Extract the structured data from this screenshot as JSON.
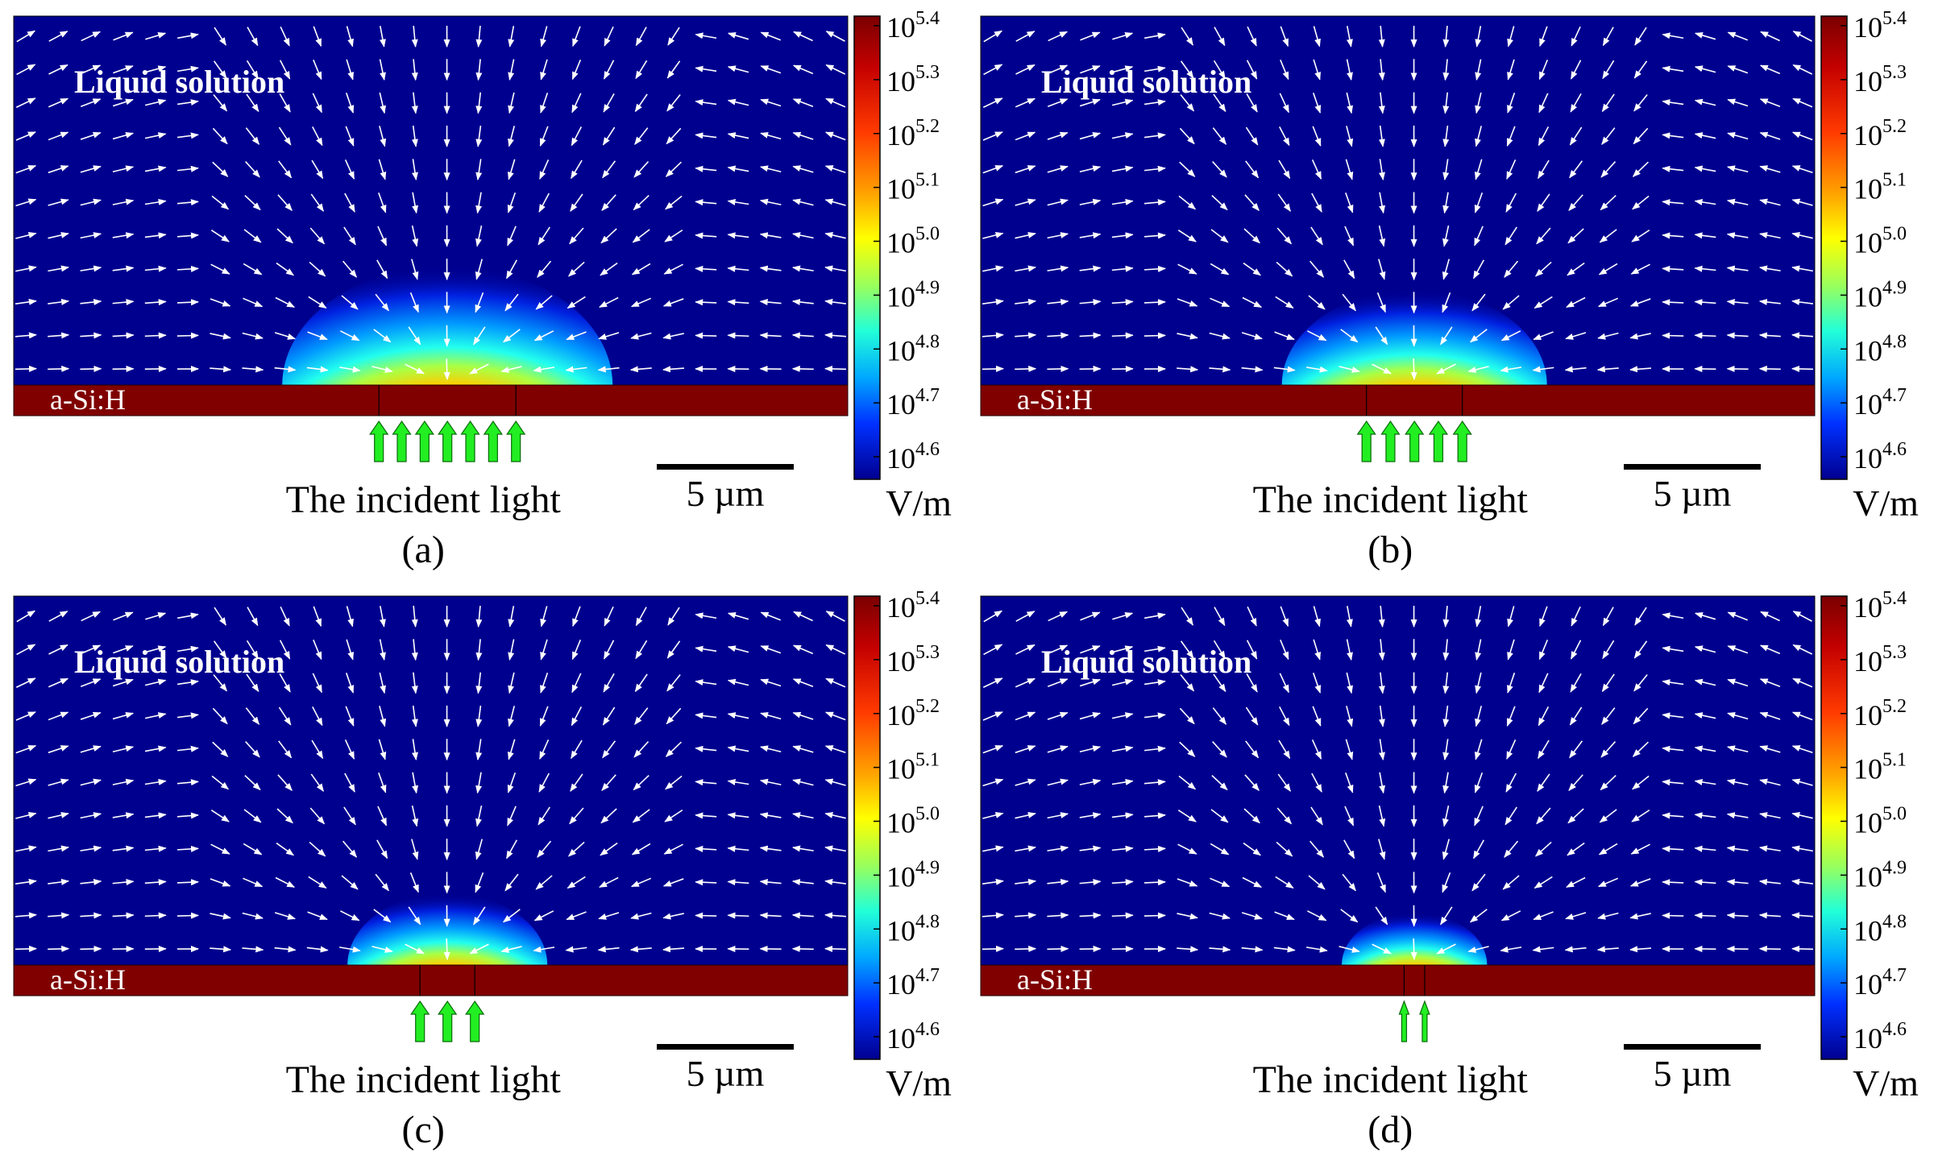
{
  "figure": {
    "panels": [
      {
        "id": "a",
        "caption": "(a)",
        "medium_label": "Liquid solution",
        "layer_label": "a-Si:H",
        "light_label": "The incident light",
        "scale_label": "5 µm",
        "unit_label": "V/m",
        "illuminated_width_um": 5.0,
        "arrow_count": 7
      },
      {
        "id": "b",
        "caption": "(b)",
        "medium_label": "Liquid solution",
        "layer_label": "a-Si:H",
        "light_label": "The incident light",
        "scale_label": "5 µm",
        "unit_label": "V/m",
        "illuminated_width_um": 3.5,
        "arrow_count": 5
      },
      {
        "id": "c",
        "caption": "(c)",
        "medium_label": "Liquid solution",
        "layer_label": "a-Si:H",
        "light_label": "The incident light",
        "scale_label": "5 µm",
        "unit_label": "V/m",
        "illuminated_width_um": 2.0,
        "arrow_count": 3
      },
      {
        "id": "d",
        "caption": "(d)",
        "medium_label": "Liquid solution",
        "layer_label": "a-Si:H",
        "light_label": "The incident light",
        "scale_label": "5 µm",
        "unit_label": "V/m",
        "illuminated_width_um": 0.75,
        "arrow_count": 2
      }
    ],
    "colorbar": {
      "base": "10",
      "exponents": [
        "5.4",
        "5.3",
        "5.2",
        "5.1",
        "5.0",
        "4.9",
        "4.8",
        "4.7",
        "4.6"
      ]
    },
    "colors": {
      "background": "#00008f",
      "substrate": "#800000",
      "light_arrows": "#22ee22",
      "field_arrows": "#ffffff"
    }
  }
}
